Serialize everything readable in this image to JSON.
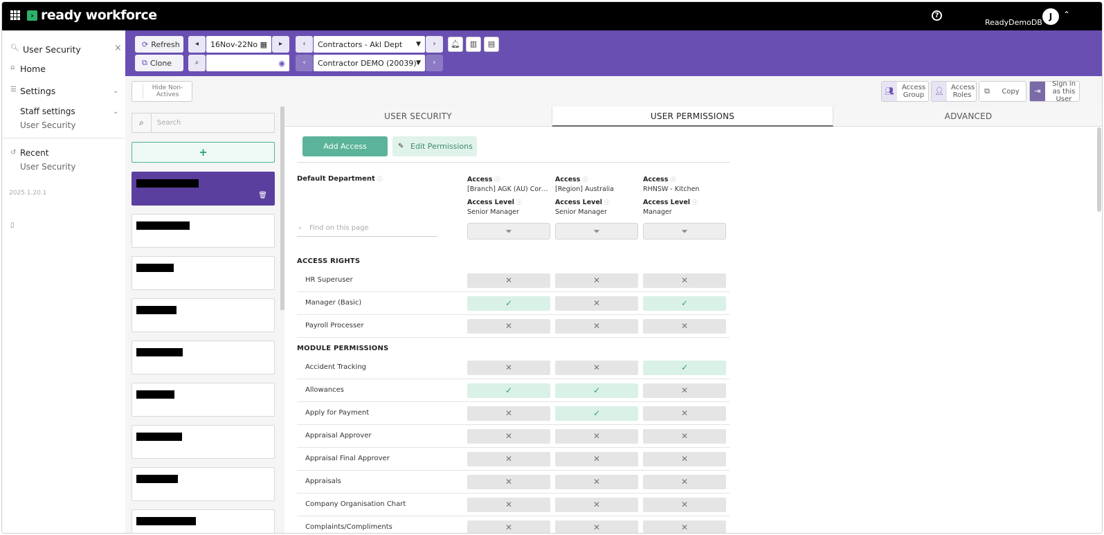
{
  "topbar": {
    "brand": "ready workforce",
    "help_icon": "?",
    "db_name": "ReadyDemoDB",
    "avatar_initial": "J"
  },
  "sidebar": {
    "open_item": "User Security",
    "home": "Home",
    "settings": "Settings",
    "staff_settings": "Staff settings",
    "staff_sub": "User Security",
    "recent": "Recent",
    "recent_sub": "User Security",
    "version": "2025.1.20.1"
  },
  "toolbar": {
    "refresh": "Refresh",
    "clone": "Clone",
    "date_range": "16Nov-22No",
    "department": "Contractors - Akl Dept",
    "contractor": "Contractor DEMO (20039)-"
  },
  "subbar": {
    "hide_label": "Hide Non-Actives",
    "access_group": "Access Group",
    "access_roles": "Access Roles",
    "copy": "Copy",
    "sign_in": "Sign in as this User"
  },
  "userlist": {
    "search_placeholder": "Search",
    "add_label": "+"
  },
  "tabs": [
    "USER SECURITY",
    "USER PERMISSIONS",
    "ADVANCED"
  ],
  "active_tab": "USER PERMISSIONS",
  "permissions": {
    "add_access": "Add Access",
    "edit_permissions": "Edit Permissions",
    "default_department_label": "Default Department",
    "find_placeholder": "Find on this page",
    "access_label": "Access",
    "access_level_label": "Access Level",
    "columns": [
      {
        "access": "[Branch] AGK (AU) Corporate",
        "level": "Senior Manager"
      },
      {
        "access": "[Region] Australia",
        "level": "Senior Manager"
      },
      {
        "access": "RHNSW - Kitchen",
        "level": "Manager"
      }
    ],
    "sections": [
      {
        "title": "ACCESS RIGHTS",
        "rows": [
          {
            "name": "HR Superuser",
            "values": [
              false,
              false,
              false
            ]
          },
          {
            "name": "Manager (Basic)",
            "values": [
              true,
              false,
              true
            ]
          },
          {
            "name": "Payroll Processer",
            "values": [
              false,
              false,
              false
            ]
          }
        ]
      },
      {
        "title": "MODULE PERMISSIONS",
        "rows": [
          {
            "name": "Accident Tracking",
            "values": [
              false,
              false,
              true
            ]
          },
          {
            "name": "Allowances",
            "values": [
              true,
              true,
              false
            ]
          },
          {
            "name": "Apply for Payment",
            "values": [
              false,
              true,
              false
            ]
          },
          {
            "name": "Appraisal Approver",
            "values": [
              false,
              false,
              false
            ]
          },
          {
            "name": "Appraisal Final Approver",
            "values": [
              false,
              false,
              false
            ]
          },
          {
            "name": "Appraisals",
            "values": [
              false,
              false,
              false
            ]
          },
          {
            "name": "Company Organisation Chart",
            "values": [
              false,
              false,
              false
            ]
          },
          {
            "name": "Complaints/Compliments",
            "values": [
              false,
              false,
              false
            ]
          }
        ]
      }
    ]
  }
}
